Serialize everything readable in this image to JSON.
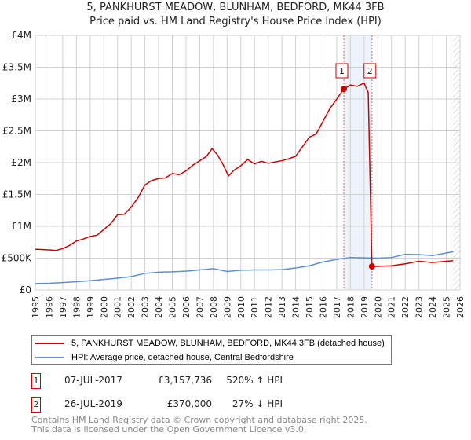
{
  "title": "5, PANKHURST MEADOW, BLUNHAM, BEDFORD, MK44 3FB",
  "subtitle": "Price paid vs. HM Land Registry's House Price Index (HPI)",
  "colors": {
    "price": "#cc0000",
    "hpi": "#5b8fd4",
    "shade": "#eef3fb"
  },
  "chart_data": {
    "type": "line",
    "title": "5, PANKHURST MEADOW, BLUNHAM, BEDFORD, MK44 3FB",
    "xlim": [
      1995,
      2026
    ],
    "ylim": [
      0,
      4000000
    ],
    "yticks": [
      {
        "v": 0,
        "label": "£0"
      },
      {
        "v": 500000,
        "label": "£500K"
      },
      {
        "v": 1000000,
        "label": "£1M"
      },
      {
        "v": 1500000,
        "label": "£1.5M"
      },
      {
        "v": 2000000,
        "label": "£2M"
      },
      {
        "v": 2500000,
        "label": "£2.5M"
      },
      {
        "v": 3000000,
        "label": "£3M"
      },
      {
        "v": 3500000,
        "label": "£3.5M"
      },
      {
        "v": 4000000,
        "label": "£4M"
      }
    ],
    "xticks": [
      "1995",
      "1996",
      "1997",
      "1998",
      "1999",
      "2000",
      "2001",
      "2002",
      "2003",
      "2004",
      "2005",
      "2006",
      "2007",
      "2008",
      "2009",
      "2010",
      "2011",
      "2012",
      "2013",
      "2014",
      "2015",
      "2016",
      "2017",
      "2018",
      "2019",
      "2020",
      "2021",
      "2022",
      "2023",
      "2024",
      "2025",
      "2026"
    ],
    "shaded_range": [
      2017.52,
      2019.57
    ],
    "hatch_from": 2025.5,
    "series": [
      {
        "name": "5, PANKHURST MEADOW, BLUNHAM, BEDFORD, MK44 3FB (detached house)",
        "points": [
          [
            1995,
            640000
          ],
          [
            1996,
            630000
          ],
          [
            1996.5,
            620000
          ],
          [
            1997,
            650000
          ],
          [
            1997.5,
            700000
          ],
          [
            1998,
            770000
          ],
          [
            1998.5,
            800000
          ],
          [
            1999,
            840000
          ],
          [
            1999.5,
            860000
          ],
          [
            2000,
            950000
          ],
          [
            2000.5,
            1040000
          ],
          [
            2001,
            1180000
          ],
          [
            2001.5,
            1190000
          ],
          [
            2002,
            1300000
          ],
          [
            2002.5,
            1450000
          ],
          [
            2003,
            1650000
          ],
          [
            2003.5,
            1720000
          ],
          [
            2004,
            1750000
          ],
          [
            2004.5,
            1760000
          ],
          [
            2005,
            1830000
          ],
          [
            2005.5,
            1810000
          ],
          [
            2006,
            1870000
          ],
          [
            2006.5,
            1960000
          ],
          [
            2007,
            2030000
          ],
          [
            2007.5,
            2100000
          ],
          [
            2007.9,
            2220000
          ],
          [
            2008.3,
            2120000
          ],
          [
            2008.7,
            1970000
          ],
          [
            2009.1,
            1790000
          ],
          [
            2009.5,
            1880000
          ],
          [
            2010,
            1950000
          ],
          [
            2010.5,
            2050000
          ],
          [
            2011,
            1980000
          ],
          [
            2011.5,
            2020000
          ],
          [
            2012,
            1990000
          ],
          [
            2012.5,
            2010000
          ],
          [
            2013,
            2030000
          ],
          [
            2013.5,
            2060000
          ],
          [
            2014,
            2100000
          ],
          [
            2014.5,
            2250000
          ],
          [
            2015,
            2400000
          ],
          [
            2015.5,
            2450000
          ],
          [
            2016,
            2650000
          ],
          [
            2016.5,
            2850000
          ],
          [
            2017,
            3000000
          ],
          [
            2017.52,
            3157736
          ],
          [
            2018,
            3220000
          ],
          [
            2018.5,
            3200000
          ],
          [
            2019,
            3250000
          ],
          [
            2019.3,
            3100000
          ],
          [
            2019.57,
            370000
          ],
          [
            2020,
            370000
          ],
          [
            2021,
            380000
          ],
          [
            2022,
            410000
          ],
          [
            2023,
            450000
          ],
          [
            2024,
            430000
          ],
          [
            2025,
            450000
          ],
          [
            2025.5,
            460000
          ]
        ]
      },
      {
        "name": "HPI: Average price, detached house, Central Bedfordshire",
        "points": [
          [
            1995,
            100000
          ],
          [
            1996,
            105000
          ],
          [
            1997,
            115000
          ],
          [
            1998,
            130000
          ],
          [
            1999,
            145000
          ],
          [
            2000,
            165000
          ],
          [
            2001,
            185000
          ],
          [
            2002,
            210000
          ],
          [
            2003,
            260000
          ],
          [
            2004,
            280000
          ],
          [
            2005,
            285000
          ],
          [
            2006,
            295000
          ],
          [
            2007,
            315000
          ],
          [
            2008,
            335000
          ],
          [
            2009,
            290000
          ],
          [
            2010,
            310000
          ],
          [
            2011,
            315000
          ],
          [
            2012,
            315000
          ],
          [
            2013,
            320000
          ],
          [
            2014,
            345000
          ],
          [
            2015,
            380000
          ],
          [
            2016,
            440000
          ],
          [
            2017,
            480000
          ],
          [
            2018,
            510000
          ],
          [
            2019,
            505000
          ],
          [
            2020,
            500000
          ],
          [
            2021,
            510000
          ],
          [
            2022,
            560000
          ],
          [
            2023,
            555000
          ],
          [
            2024,
            540000
          ],
          [
            2025,
            580000
          ],
          [
            2025.5,
            600000
          ]
        ]
      }
    ],
    "markers": [
      {
        "label": "1",
        "x": 2017.52,
        "y": 3157736
      },
      {
        "label": "2",
        "x": 2019.57,
        "y": 370000
      }
    ]
  },
  "legend": {
    "price": "5, PANKHURST MEADOW, BLUNHAM, BEDFORD, MK44 3FB (detached house)",
    "hpi": "HPI: Average price, detached house, Central Bedfordshire"
  },
  "transactions": [
    {
      "num": "1",
      "date": "07-JUL-2017",
      "price": "£3,157,736",
      "delta": "520% ↑ HPI"
    },
    {
      "num": "2",
      "date": "26-JUL-2019",
      "price": "£370,000",
      "delta": "27% ↓ HPI"
    }
  ],
  "footer": {
    "line1": "Contains HM Land Registry data © Crown copyright and database right 2025.",
    "line2": "This data is licensed under the Open Government Licence v3.0."
  }
}
